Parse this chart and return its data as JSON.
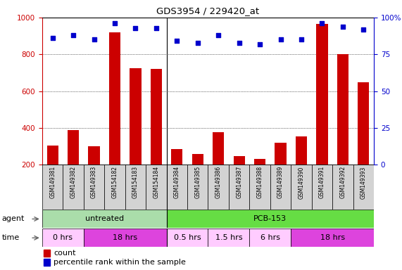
{
  "title": "GDS3954 / 229420_at",
  "samples": [
    "GSM149381",
    "GSM149382",
    "GSM149383",
    "GSM154182",
    "GSM154183",
    "GSM154184",
    "GSM149384",
    "GSM149385",
    "GSM149386",
    "GSM149387",
    "GSM149388",
    "GSM149389",
    "GSM149390",
    "GSM149391",
    "GSM149392",
    "GSM149393"
  ],
  "counts": [
    305,
    390,
    300,
    920,
    725,
    720,
    285,
    260,
    375,
    248,
    232,
    320,
    355,
    965,
    800,
    650
  ],
  "percentiles": [
    86,
    88,
    85,
    96,
    93,
    93,
    84,
    83,
    88,
    83,
    82,
    85,
    85,
    96,
    94,
    92
  ],
  "ylim_left": [
    200,
    1000
  ],
  "ylim_right": [
    0,
    100
  ],
  "yticks_left": [
    200,
    400,
    600,
    800,
    1000
  ],
  "yticks_right": [
    0,
    25,
    50,
    75,
    100
  ],
  "bar_color": "#cc0000",
  "dot_color": "#0000cc",
  "agent_groups": [
    {
      "label": "untreated",
      "start": 0,
      "end": 5,
      "color": "#aaddaa"
    },
    {
      "label": "PCB-153",
      "start": 6,
      "end": 15,
      "color": "#66dd44"
    }
  ],
  "time_groups": [
    {
      "label": "0 hrs",
      "start": 0,
      "end": 1,
      "color": "#ffccff"
    },
    {
      "label": "18 hrs",
      "start": 2,
      "end": 5,
      "color": "#dd44dd"
    },
    {
      "label": "0.5 hrs",
      "start": 6,
      "end": 7,
      "color": "#ffccff"
    },
    {
      "label": "1.5 hrs",
      "start": 8,
      "end": 9,
      "color": "#ffccff"
    },
    {
      "label": "6 hrs",
      "start": 10,
      "end": 11,
      "color": "#ffccff"
    },
    {
      "label": "18 hrs",
      "start": 12,
      "end": 15,
      "color": "#dd44dd"
    }
  ]
}
